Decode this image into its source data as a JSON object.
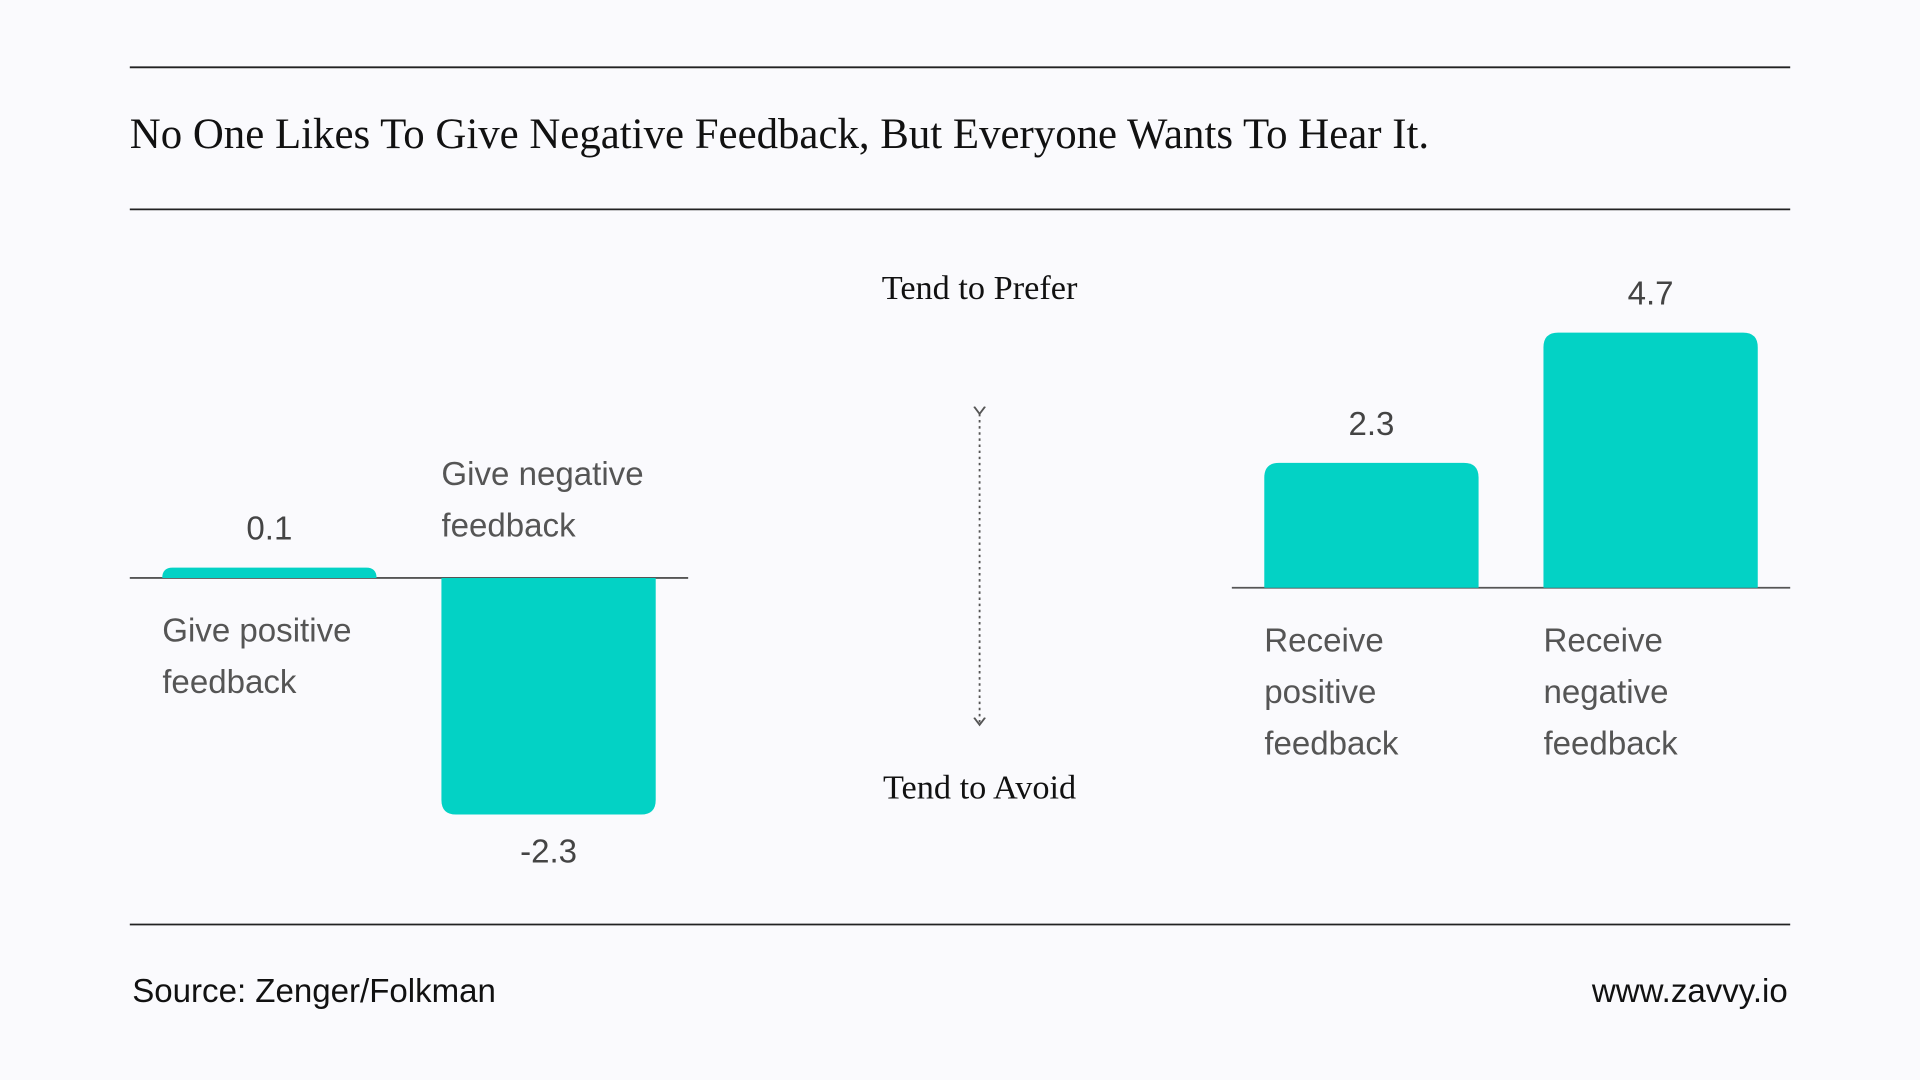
{
  "title": "No One Likes To Give Negative Feedback, But Everyone Wants To Hear It.",
  "chart_data": [
    {
      "type": "bar",
      "categories": [
        "Give positive feedback",
        "Give negative feedback"
      ],
      "values": [
        0.1,
        -2.3
      ],
      "color": "#03d2c5",
      "ylim": [
        -3,
        3
      ]
    },
    {
      "type": "bar",
      "categories": [
        "Receive positive feedback",
        "Receive negative feedback"
      ],
      "values": [
        2.3,
        4.7
      ],
      "color": "#03d2c5",
      "ylim": [
        0,
        6
      ]
    }
  ],
  "annotations": {
    "top": "Tend to Prefer",
    "bottom": "Tend to Avoid"
  },
  "footer": {
    "source": "Source: Zenger/Folkman",
    "website": "www.zavvy.io"
  }
}
